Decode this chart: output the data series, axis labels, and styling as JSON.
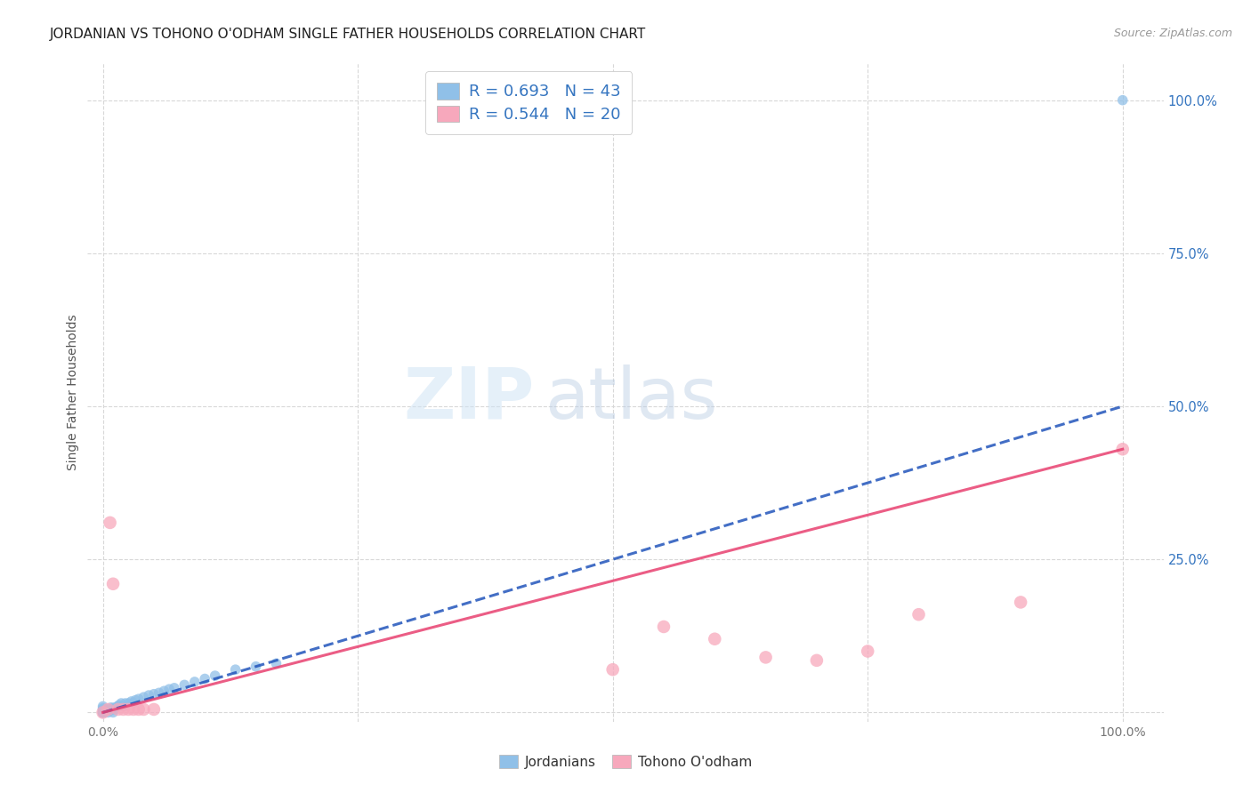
{
  "title": "JORDANIAN VS TOHONO O'ODHAM SINGLE FATHER HOUSEHOLDS CORRELATION CHART",
  "source": "Source: ZipAtlas.com",
  "ylabel": "Single Father Households",
  "xtick_positions": [
    0.0,
    0.25,
    0.5,
    0.75,
    1.0
  ],
  "xtick_labels": [
    "0.0%",
    "",
    "",
    "",
    "100.0%"
  ],
  "ytick_right_positions": [
    0.25,
    0.5,
    0.75,
    1.0
  ],
  "ytick_right_labels": [
    "25.0%",
    "50.0%",
    "75.0%",
    "100.0%"
  ],
  "xmin": -0.015,
  "xmax": 1.04,
  "ymin": -0.015,
  "ymax": 1.06,
  "legend_label_color": "#3575c0",
  "watermark_zip": "ZIP",
  "watermark_atlas": "atlas",
  "background_color": "#ffffff",
  "grid_color": "#d8d8d8",
  "jordanian_color": "#90c0e8",
  "tohono_color": "#f7a8bc",
  "jordanian_line_color": "#2255bb",
  "tohono_line_color": "#e84070",
  "jordanian_line_style": "--",
  "tohono_line_style": "-",
  "legend_entry_1": "R = 0.693   N = 43",
  "legend_entry_2": "R = 0.544   N = 20",
  "bottom_legend_1": "Jordanians",
  "bottom_legend_2": "Tohono O'odham",
  "jordanians_x": [
    0.0,
    0.0,
    0.0,
    0.0,
    0.0,
    0.0,
    0.0,
    0.0,
    0.0,
    0.005,
    0.005,
    0.007,
    0.008,
    0.01,
    0.01,
    0.01,
    0.012,
    0.013,
    0.015,
    0.016,
    0.018,
    0.02,
    0.022,
    0.025,
    0.028,
    0.03,
    0.032,
    0.035,
    0.04,
    0.045,
    0.05,
    0.055,
    0.06,
    0.065,
    0.07,
    0.08,
    0.09,
    0.1,
    0.11,
    0.13,
    0.15,
    0.17,
    1.0
  ],
  "jordanians_y": [
    0.0,
    0.0,
    0.0,
    0.0,
    0.0,
    0.003,
    0.005,
    0.007,
    0.01,
    0.0,
    0.003,
    0.005,
    0.008,
    0.0,
    0.004,
    0.007,
    0.006,
    0.009,
    0.01,
    0.012,
    0.015,
    0.01,
    0.015,
    0.015,
    0.018,
    0.016,
    0.02,
    0.022,
    0.025,
    0.028,
    0.03,
    0.032,
    0.035,
    0.038,
    0.04,
    0.045,
    0.05,
    0.055,
    0.06,
    0.07,
    0.075,
    0.08,
    1.0
  ],
  "tohono_x": [
    0.0,
    0.007,
    0.01,
    0.025,
    0.035,
    0.04,
    0.05,
    0.5,
    0.6,
    0.65,
    0.7,
    0.75,
    0.8,
    1.0,
    0.005,
    0.015,
    0.02,
    0.03,
    0.55,
    0.9
  ],
  "tohono_y": [
    0.0,
    0.31,
    0.21,
    0.005,
    0.005,
    0.005,
    0.005,
    0.07,
    0.12,
    0.09,
    0.085,
    0.1,
    0.16,
    0.43,
    0.005,
    0.005,
    0.005,
    0.005,
    0.14,
    0.18
  ],
  "jordanian_regline": [
    0.0,
    0.5
  ],
  "tohono_regline": [
    0.0,
    0.43
  ],
  "scatter_size_j": 70,
  "scatter_size_t": 110
}
